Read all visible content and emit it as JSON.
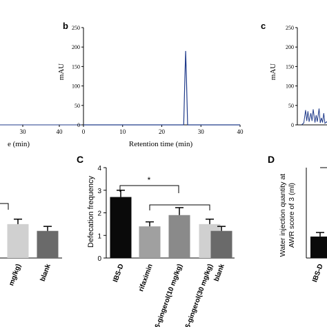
{
  "chart_data": [
    {
      "panel_label": "",
      "type": "line",
      "xlabel": "e (min)",
      "x_ticks": [
        30,
        40
      ],
      "xlim": [
        0,
        40
      ],
      "series": [
        {
          "x": [
            0,
            40
          ],
          "y": [
            0,
            0
          ]
        }
      ],
      "color": "#1f3a8a"
    },
    {
      "panel_label": "b",
      "type": "line",
      "xlabel": "Retention time (min)",
      "ylabel": "mAU",
      "x_ticks": [
        0,
        10,
        20,
        30,
        40
      ],
      "y_ticks": [
        0,
        50,
        100,
        150,
        200,
        250
      ],
      "xlim": [
        0,
        40
      ],
      "ylim": [
        0,
        250
      ],
      "series": [
        {
          "x": [
            0,
            25.6,
            25.9,
            26.1,
            26.3,
            26.6,
            40
          ],
          "y": [
            0,
            0,
            120,
            190,
            120,
            0,
            0
          ]
        }
      ],
      "color": "#1f3a8a"
    },
    {
      "panel_label": "c",
      "type": "line",
      "ylabel": "mAU",
      "y_ticks": [
        0,
        50,
        100,
        150,
        200,
        250
      ],
      "ylim": [
        0,
        250
      ],
      "series": [
        {
          "x": [
            0,
            0.4,
            0.7,
            0.9,
            1.1,
            1.3,
            1.6,
            1.8,
            2.0,
            2.3,
            2.5,
            2.7,
            3.0,
            3.2,
            3.4,
            3.6,
            3.8,
            4.0,
            4.3,
            4.6,
            5.0
          ],
          "y": [
            0,
            5,
            38,
            10,
            35,
            8,
            30,
            10,
            40,
            6,
            25,
            8,
            42,
            5,
            18,
            6,
            30,
            4,
            8,
            2,
            0
          ]
        }
      ],
      "color": "#1f3a8a"
    },
    {
      "panel_label": "",
      "type": "bar",
      "categories": [
        "mg/kg)",
        "blank"
      ],
      "values": [
        1.5,
        1.2
      ],
      "errors": [
        0.22,
        0.2
      ],
      "colors": [
        "#d0d0d0",
        "#6a6a6a"
      ]
    },
    {
      "panel_label": "C",
      "type": "bar",
      "ylabel": "Defecation frequency",
      "categories": [
        "IBS-D",
        "rifaximin",
        "6-gingerol(10 mg/kg)",
        "6-gingerol(30 mg/kg)",
        "blank"
      ],
      "values": [
        2.7,
        1.4,
        1.9,
        1.5,
        1.2
      ],
      "errors": [
        0.3,
        0.2,
        0.33,
        0.22,
        0.2
      ],
      "colors": [
        "#0a0a0a",
        "#a0a0a0",
        "#8a8a8a",
        "#d0d0d0",
        "#6a6a6a"
      ],
      "y_ticks": [
        0,
        1,
        2,
        3,
        4
      ],
      "ylim": [
        0,
        4
      ],
      "annotations": [
        "*"
      ]
    },
    {
      "panel_label": "D",
      "type": "bar",
      "ylabel": "Water injection quantity at AWR score of 3 (ml)",
      "categories": [
        "IBS-D"
      ],
      "values": [
        0.95
      ],
      "errors": [
        0.18
      ],
      "colors": [
        "#0a0a0a"
      ]
    }
  ]
}
